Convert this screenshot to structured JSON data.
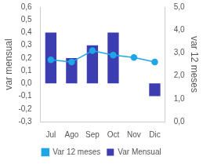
{
  "chart_data": {
    "type": "bar",
    "categories": [
      "Jul",
      "Ago",
      "Sep",
      "Oct",
      "Nov",
      "Dic"
    ],
    "series": [
      {
        "name": "Var Mensual",
        "type": "bar",
        "color": "#3b3db0",
        "values": [
          0.4,
          0.2,
          0.3,
          0.4,
          null,
          -0.1
        ]
      },
      {
        "name": "Var 12 meses",
        "type": "line",
        "axis": "y2",
        "color": "#1ea6e6",
        "marker": "circle",
        "values": [
          2.7,
          2.6,
          3.1,
          2.9,
          2.8,
          2.6
        ]
      }
    ],
    "y_label": "var mensual",
    "y2_label": "var 12 meses",
    "ylim": [
      -0.3,
      0.6
    ],
    "yticks": [
      {
        "value": -0.3,
        "label": "-0,3"
      },
      {
        "value": -0.2,
        "label": "-0,2"
      },
      {
        "value": -0.1,
        "label": "-0,1"
      },
      {
        "value": 0,
        "label": "0,0"
      },
      {
        "value": 0.1,
        "label": "0,1"
      },
      {
        "value": 0.2,
        "label": "0,2"
      },
      {
        "value": 0.3,
        "label": "0,3"
      },
      {
        "value": 0.4,
        "label": "0,4"
      },
      {
        "value": 0.5,
        "label": "0,5"
      },
      {
        "value": 0.6,
        "label": "0,6"
      }
    ],
    "y2lim": [
      0,
      5
    ],
    "y2ticks": [
      {
        "value": 0,
        "label": "0,0"
      },
      {
        "value": 1,
        "label": "1,0"
      },
      {
        "value": 2,
        "label": "2,0"
      },
      {
        "value": 3,
        "label": "3,0"
      },
      {
        "value": 4,
        "label": "4,0"
      },
      {
        "value": 5,
        "label": "5,0"
      }
    ],
    "grid": false,
    "legend": "bottom"
  }
}
